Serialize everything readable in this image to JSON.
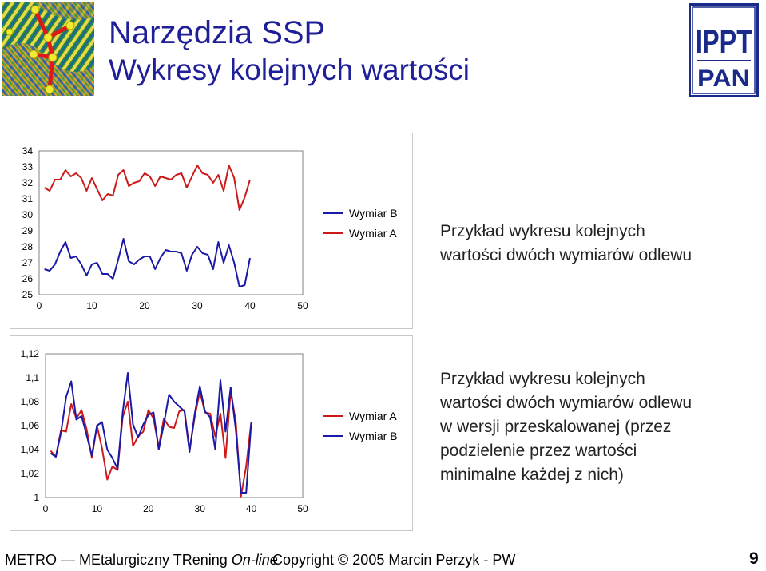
{
  "header": {
    "title": "Narzędzia SSP",
    "subtitle": "Wykresy kolejnych wartości"
  },
  "logo_right_text": [
    "IPPT",
    "PAN"
  ],
  "section1": {
    "description_lines": [
      "Przykład wykresu kolejnych",
      "wartości dwóch wymiarów odlewu"
    ]
  },
  "section2": {
    "description_lines": [
      "Przykład wykresu kolejnych",
      "wartości dwóch wymiarów odlewu",
      "w wersji przeskalowanej (przez",
      "podzielenie przez wartości",
      "minimalne każdej z nich)"
    ]
  },
  "footer": {
    "left_plain": "METRO — MEtalurgiczny TRening ",
    "left_italic": "On-line",
    "copyright": "Copyright © 2005 Marcin Perzyk - PW",
    "page_number": "9"
  },
  "chart_data": [
    {
      "type": "line",
      "title": "",
      "xlabel": "",
      "ylabel": "",
      "xlim": [
        0,
        50
      ],
      "ylim": [
        25,
        34
      ],
      "x_ticks": [
        "0",
        "10",
        "20",
        "30",
        "40",
        "50"
      ],
      "y_ticks": [
        "34",
        "33",
        "32",
        "31",
        "30",
        "29",
        "28",
        "27",
        "26",
        "25"
      ],
      "grid": false,
      "legend_position": "right",
      "series": [
        {
          "name": "Wymiar B",
          "color": "#1a1aa6",
          "values": [
            26.6,
            26.5,
            26.9,
            27.7,
            28.3,
            27.3,
            27.4,
            26.9,
            26.2,
            26.9,
            27.0,
            26.3,
            26.3,
            26.0,
            27.2,
            28.5,
            27.1,
            26.9,
            27.2,
            27.4,
            27.4,
            26.6,
            27.3,
            27.8,
            27.7,
            27.7,
            27.6,
            26.5,
            27.5,
            28.0,
            27.6,
            27.5,
            26.6,
            28.3,
            27.0,
            28.1,
            27.0,
            25.5,
            25.6,
            27.3
          ]
        },
        {
          "name": "Wymiar A",
          "color": "#cc1a1a",
          "values": [
            31.7,
            31.5,
            32.2,
            32.2,
            32.8,
            32.4,
            32.6,
            32.3,
            31.5,
            32.3,
            31.6,
            30.9,
            31.3,
            31.2,
            32.5,
            32.8,
            31.8,
            32.0,
            32.1,
            32.6,
            32.4,
            31.8,
            32.4,
            32.3,
            32.2,
            32.5,
            32.6,
            31.7,
            32.4,
            33.1,
            32.6,
            32.5,
            32.0,
            32.5,
            31.5,
            33.1,
            32.3,
            30.3,
            31.1,
            32.2
          ]
        }
      ]
    },
    {
      "type": "line",
      "title": "",
      "xlabel": "",
      "ylabel": "",
      "xlim": [
        0,
        50
      ],
      "ylim": [
        1,
        1.12
      ],
      "x_ticks": [
        "0",
        "10",
        "20",
        "30",
        "40",
        "50"
      ],
      "y_ticks": [
        "1,12",
        "1,1",
        "1,08",
        "1,06",
        "1,04",
        "1,02",
        "1"
      ],
      "grid": false,
      "legend_position": "right",
      "series": [
        {
          "name": "Wymiar A",
          "color": "#cc1a1a",
          "values": [
            1.039,
            1.034,
            1.056,
            1.055,
            1.078,
            1.066,
            1.073,
            1.057,
            1.033,
            1.06,
            1.041,
            1.015,
            1.026,
            1.023,
            1.067,
            1.08,
            1.043,
            1.051,
            1.055,
            1.073,
            1.066,
            1.042,
            1.066,
            1.059,
            1.058,
            1.072,
            1.073,
            1.04,
            1.067,
            1.089,
            1.071,
            1.07,
            1.051,
            1.07,
            1.033,
            1.089,
            1.063,
            1.001,
            1.026,
            1.063
          ]
        },
        {
          "name": "Wymiar B",
          "color": "#1a1aa6",
          "values": [
            1.037,
            1.034,
            1.054,
            1.084,
            1.097,
            1.065,
            1.068,
            1.052,
            1.035,
            1.06,
            1.063,
            1.04,
            1.033,
            1.024,
            1.071,
            1.104,
            1.061,
            1.05,
            1.061,
            1.069,
            1.071,
            1.04,
            1.061,
            1.086,
            1.08,
            1.076,
            1.072,
            1.038,
            1.07,
            1.093,
            1.072,
            1.067,
            1.04,
            1.098,
            1.055,
            1.092,
            1.056,
            1.004,
            1.004,
            1.063
          ]
        }
      ]
    }
  ]
}
